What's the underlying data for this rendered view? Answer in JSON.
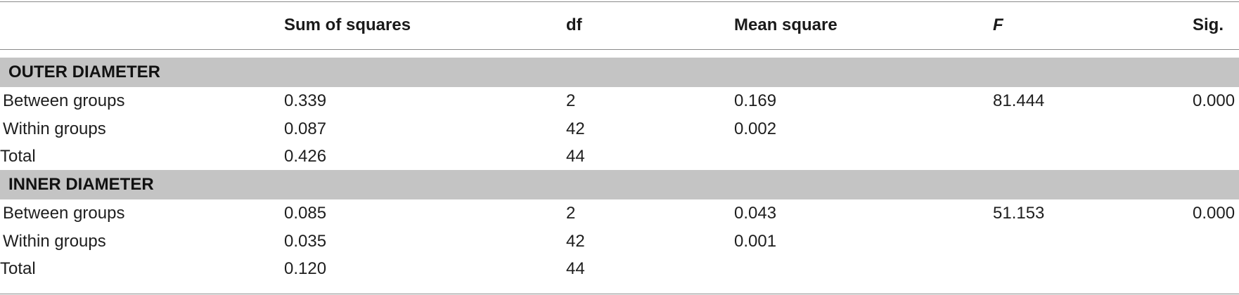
{
  "table": {
    "headers": {
      "source": "",
      "sum_of_squares": "Sum of squares",
      "df": "df",
      "mean_square": "Mean square",
      "f": "F",
      "sig": "Sig."
    },
    "sections": [
      {
        "title": "OUTER DIAMETER",
        "rows": [
          {
            "source": "Between groups",
            "sum_of_squares": "0.339",
            "df": "2",
            "mean_square": "0.169",
            "f": "81.444",
            "sig": "0.000"
          },
          {
            "source": "Within groups",
            "sum_of_squares": "0.087",
            "df": "42",
            "mean_square": "0.002",
            "f": "",
            "sig": ""
          },
          {
            "source": "Total",
            "sum_of_squares": "0.426",
            "df": "44",
            "mean_square": "",
            "f": "",
            "sig": ""
          }
        ]
      },
      {
        "title": "INNER DIAMETER",
        "rows": [
          {
            "source": "Between groups",
            "sum_of_squares": "0.085",
            "df": "2",
            "mean_square": "0.043",
            "f": "51.153",
            "sig": "0.000"
          },
          {
            "source": "Within groups",
            "sum_of_squares": "0.035",
            "df": "42",
            "mean_square": "0.001",
            "f": "",
            "sig": ""
          },
          {
            "source": "Total",
            "sum_of_squares": "0.120",
            "df": "44",
            "mean_square": "",
            "f": "",
            "sig": ""
          }
        ]
      }
    ]
  }
}
